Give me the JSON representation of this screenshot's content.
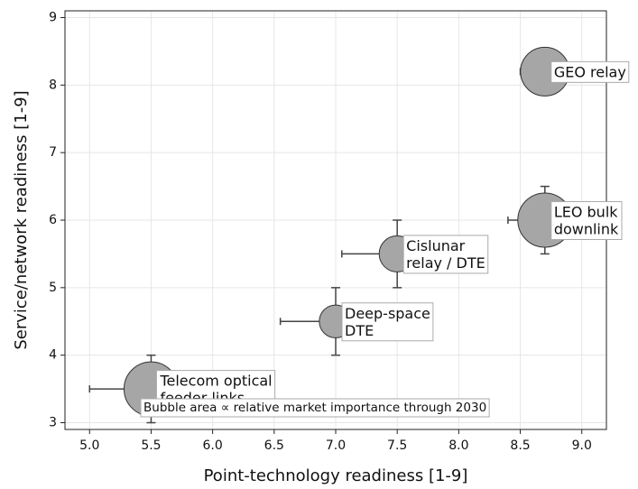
{
  "chart_data": {
    "type": "scatter",
    "x_label": "Point-technology readiness [1-9]",
    "y_label": "Service/network readiness [1-9]",
    "annotation": "Bubble area ∝ relative market importance through 2030",
    "series": [
      {
        "name": null,
        "labels": [
          [
            "Telecom optical",
            "feeder links"
          ],
          [
            "Deep-space",
            "DTE"
          ],
          [
            "Cislunar",
            "relay / DTE"
          ],
          [
            "LEO bulk",
            "downlink"
          ],
          [
            "GEO relay"
          ]
        ],
        "x": [
          5.5,
          7.0,
          7.5,
          8.7,
          8.7
        ],
        "values": [
          3.5,
          4.5,
          5.5,
          6.0,
          8.2
        ],
        "sizes": [
          900,
          330,
          400,
          900,
          730
        ],
        "x_low": [
          5.0,
          6.55,
          7.05,
          8.4,
          8.5
        ],
        "x_high": [
          5.5,
          7.0,
          7.5,
          8.7,
          8.9
        ],
        "y_low": [
          3.0,
          4.0,
          5.0,
          5.5,
          7.85
        ],
        "y_high": [
          4.0,
          5.0,
          6.0,
          6.5,
          8.55
        ],
        "color": "#a6a6a6",
        "edgecolor": "#333333",
        "errcolor": "#444444"
      }
    ],
    "xlim": [
      4.8,
      9.2
    ],
    "ylim": [
      2.9,
      9.1
    ],
    "xticks": [
      {
        "value": 5.0,
        "label": "5.0"
      },
      {
        "value": 5.5,
        "label": "5.5"
      },
      {
        "value": 6.0,
        "label": "6.0"
      },
      {
        "value": 6.5,
        "label": "6.5"
      },
      {
        "value": 7.0,
        "label": "7.0"
      },
      {
        "value": 7.5,
        "label": "7.5"
      },
      {
        "value": 8.0,
        "label": "8.0"
      },
      {
        "value": 8.5,
        "label": "8.5"
      },
      {
        "value": 9.0,
        "label": "9.0"
      }
    ],
    "yticks": [
      3,
      4,
      5,
      6,
      7,
      8,
      9
    ],
    "grid": true
  }
}
